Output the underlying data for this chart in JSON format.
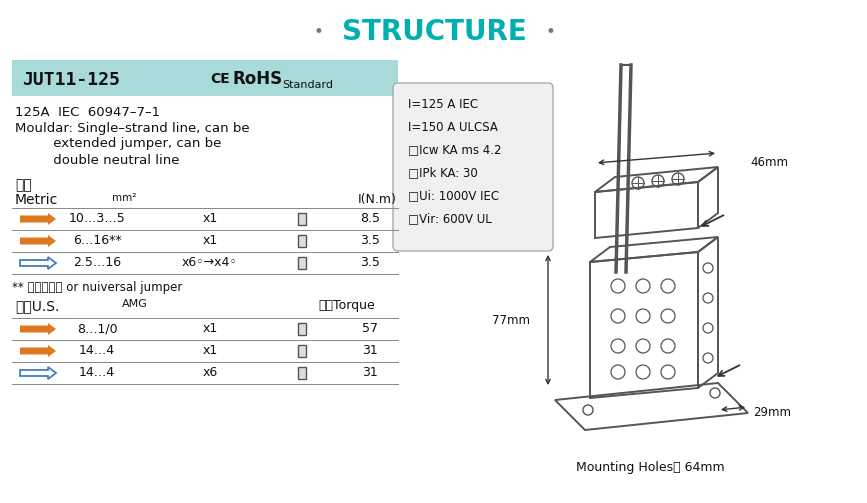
{
  "bg_color": "#ffffff",
  "title": "STRUCTURE",
  "title_color": "#00b0b0",
  "header_bg": "#a8dada",
  "header_text": "JUT11-125",
  "ce_text": "CE",
  "rohs_text": "RoHS",
  "standard_text": "Standard",
  "spec_text": [
    "125A  IEC  60947–7–1",
    "Mouldar: Single–strand line, can be",
    "         extended jumper, can be",
    "         double neutral line"
  ],
  "chinese_metric": "公制",
  "metric_label": "Metric",
  "metric_unit": "mm²",
  "metric_torque_label": "I(N.m)",
  "metric_rows": [
    {
      "wire": "10…3…5",
      "mult": "x1",
      "torque": "8.5",
      "filled": true,
      "arrow_color": "#e07820"
    },
    {
      "wire": "6…16**",
      "mult": "x1",
      "torque": "3.5",
      "filled": true,
      "arrow_color": "#e07820"
    },
    {
      "wire": "2.5…16",
      "mult": "x6◦→x4◦",
      "torque": "3.5",
      "filled": false,
      "arrow_color": "#4080c0"
    }
  ],
  "jumper_note": "** 或通用跳线 or nuiversal jumper",
  "chinese_us": "美规U.S.",
  "amg_label": "AMG",
  "torque_label": "力矩Torque",
  "us_rows": [
    {
      "wire": "8…1/0",
      "mult": "x1",
      "torque": "57",
      "filled": true,
      "arrow_color": "#e07820"
    },
    {
      "wire": "14…4",
      "mult": "x1",
      "torque": "31",
      "filled": true,
      "arrow_color": "#e07820"
    },
    {
      "wire": "14…4",
      "mult": "x6",
      "torque": "31",
      "filled": false,
      "arrow_color": "#4080c0"
    }
  ],
  "spec_box_lines": [
    "I=125 A IEC",
    "I=150 A ULCSA",
    "□Icw KA ms 4.2",
    "□IPk KA: 30",
    "□Ui: 1000V IEC",
    "□Vir: 600V UL"
  ],
  "dim_46": "46mm",
  "dim_77": "77mm",
  "dim_29": "29mm",
  "dim_mounting": "Mounting Holes： 64mm"
}
